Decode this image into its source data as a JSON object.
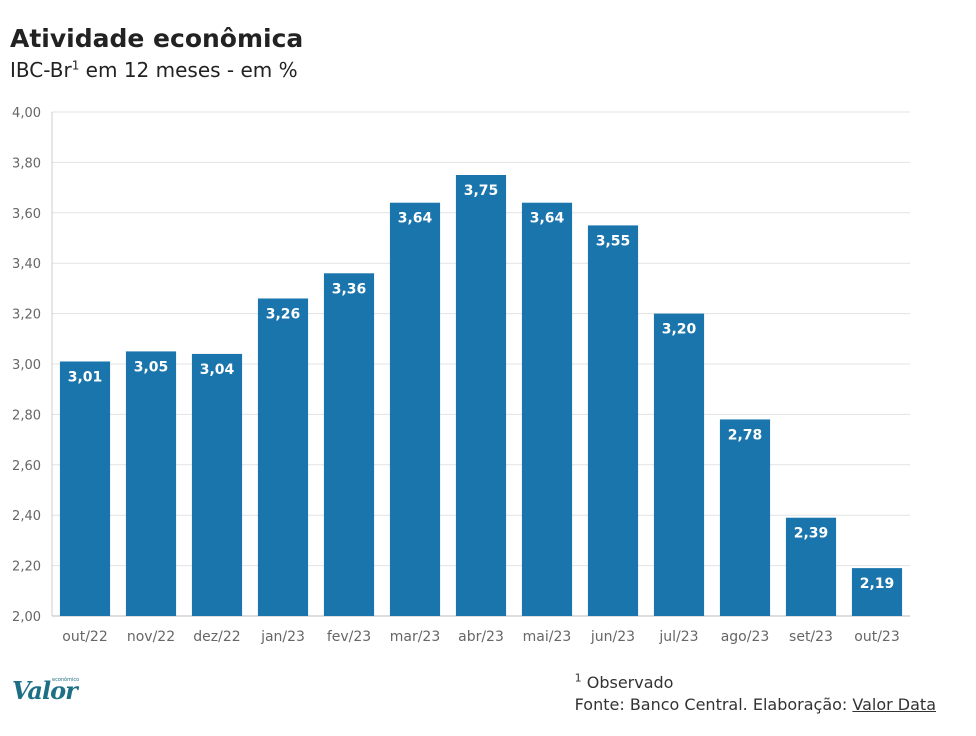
{
  "header": {
    "title": "Atividade econômica",
    "subtitle_prefix": "IBC-Br",
    "subtitle_sup": "1",
    "subtitle_suffix": " em 12 meses - em %"
  },
  "chart_data": {
    "type": "bar",
    "title": "Atividade econômica",
    "subtitle": "IBC-Br¹ em 12 meses - em %",
    "categories": [
      "out/22",
      "nov/22",
      "dez/22",
      "jan/23",
      "fev/23",
      "mar/23",
      "abr/23",
      "mai/23",
      "jun/23",
      "jul/23",
      "ago/23",
      "set/23",
      "out/23"
    ],
    "values": [
      3.01,
      3.05,
      3.04,
      3.26,
      3.36,
      3.64,
      3.75,
      3.64,
      3.55,
      3.2,
      2.78,
      2.39,
      2.19
    ],
    "value_labels": [
      "3,01",
      "3,05",
      "3,04",
      "3,26",
      "3,36",
      "3,64",
      "3,75",
      "3,64",
      "3,55",
      "3,20",
      "2,78",
      "2,39",
      "2,19"
    ],
    "ylim": [
      2.0,
      4.0
    ],
    "yticks": [
      2.0,
      2.2,
      2.4,
      2.6,
      2.8,
      3.0,
      3.2,
      3.4,
      3.6,
      3.8,
      4.0
    ],
    "ytick_labels": [
      "2,00",
      "2,20",
      "2,40",
      "2,60",
      "2,80",
      "3,00",
      "3,20",
      "3,40",
      "3,60",
      "3,80",
      "4,00"
    ],
    "xlabel": "",
    "ylabel": "",
    "grid": true,
    "bar_color": "#1a75ad"
  },
  "logo": {
    "name": "Valor",
    "small": "econômico"
  },
  "footer": {
    "note_sup": "1",
    "note_text": " Observado",
    "source_prefix": "Fonte: Banco Central. Elaboração: ",
    "source_link": "Valor Data"
  }
}
